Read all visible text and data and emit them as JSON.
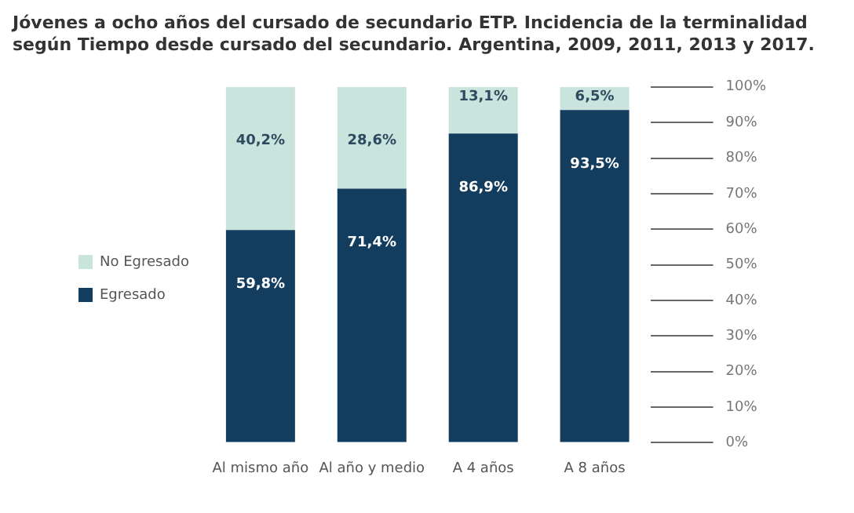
{
  "chart_data": {
    "type": "bar",
    "title": "Jóvenes a ocho años del cursado de secundario ETP. Incidencia de la terminalidad según Tiempo desde cursado del secundario. Argentina, 2009, 2011, 2013 y 2017.",
    "categories": [
      "Al mismo año",
      "Al año y medio",
      "A 4 años",
      "A 8 años"
    ],
    "stacked": true,
    "legend": "left",
    "ylim": [
      0,
      100
    ],
    "yticks": [
      {
        "value": 0,
        "label": "0%"
      },
      {
        "value": 10,
        "label": "10%"
      },
      {
        "value": 20,
        "label": "20%"
      },
      {
        "value": 30,
        "label": "30%"
      },
      {
        "value": 40,
        "label": "40%"
      },
      {
        "value": 50,
        "label": "50%"
      },
      {
        "value": 60,
        "label": "60%"
      },
      {
        "value": 70,
        "label": "70%"
      },
      {
        "value": 80,
        "label": "80%"
      },
      {
        "value": 90,
        "label": "90%"
      },
      {
        "value": 100,
        "label": "100%"
      }
    ],
    "series": [
      {
        "name": "Egresado",
        "color": "#133d5e",
        "values": [
          59.8,
          71.4,
          86.9,
          93.5
        ],
        "value_labels": [
          "59,8%",
          "71,4%",
          "86,9%",
          "93,5%"
        ]
      },
      {
        "name": "No Egresado",
        "color": "#c9e4dd",
        "values": [
          40.2,
          28.6,
          13.1,
          6.5
        ],
        "value_labels": [
          "40,2%",
          "28,6%",
          "13,1%",
          "6,5%"
        ]
      }
    ]
  }
}
